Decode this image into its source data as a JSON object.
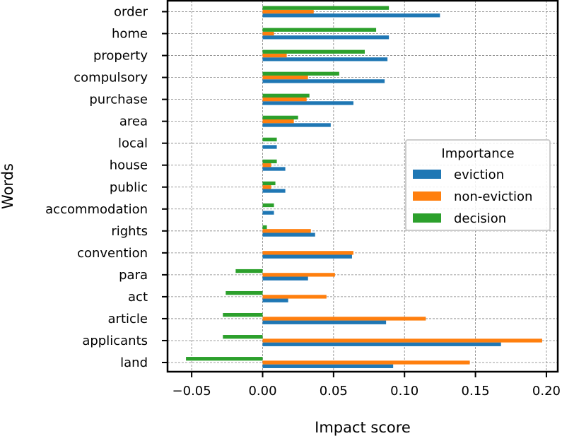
{
  "chart_data": {
    "type": "bar",
    "orientation": "horizontal",
    "xlabel": "Impact score",
    "ylabel": "Words",
    "xlim": [
      -0.067,
      0.208
    ],
    "xticks": [
      "−0.05",
      "0.00",
      "0.05",
      "0.10",
      "0.15",
      "0.20"
    ],
    "xtick_values": [
      -0.05,
      0,
      0.05,
      0.1,
      0.15,
      0.2
    ],
    "grid": true,
    "legend": {
      "title": "Importance",
      "placement": "center-right"
    },
    "categories": [
      "order",
      "home",
      "property",
      "compulsory",
      "purchase",
      "area",
      "local",
      "house",
      "public",
      "accommodation",
      "rights",
      "convention",
      "para",
      "act",
      "article",
      "applicants",
      "land"
    ],
    "series": [
      {
        "name": "eviction",
        "color": "#1f77b4",
        "values": [
          0.125,
          0.089,
          0.088,
          0.086,
          0.064,
          0.048,
          0.01,
          0.016,
          0.016,
          0.008,
          0.037,
          0.063,
          0.032,
          0.018,
          0.087,
          0.168,
          0.092
        ]
      },
      {
        "name": "non-eviction",
        "color": "#ff7f0e",
        "values": [
          0.036,
          0.008,
          0.017,
          0.032,
          0.031,
          0.022,
          0.0,
          0.006,
          0.006,
          0.0,
          0.034,
          0.064,
          0.051,
          0.045,
          0.115,
          0.197,
          0.146
        ]
      },
      {
        "name": "decision",
        "color": "#2ca02c",
        "values": [
          0.089,
          0.08,
          0.072,
          0.054,
          0.033,
          0.025,
          0.01,
          0.01,
          0.009,
          0.008,
          0.003,
          0.0,
          -0.019,
          -0.026,
          -0.028,
          -0.028,
          -0.054
        ]
      }
    ]
  }
}
